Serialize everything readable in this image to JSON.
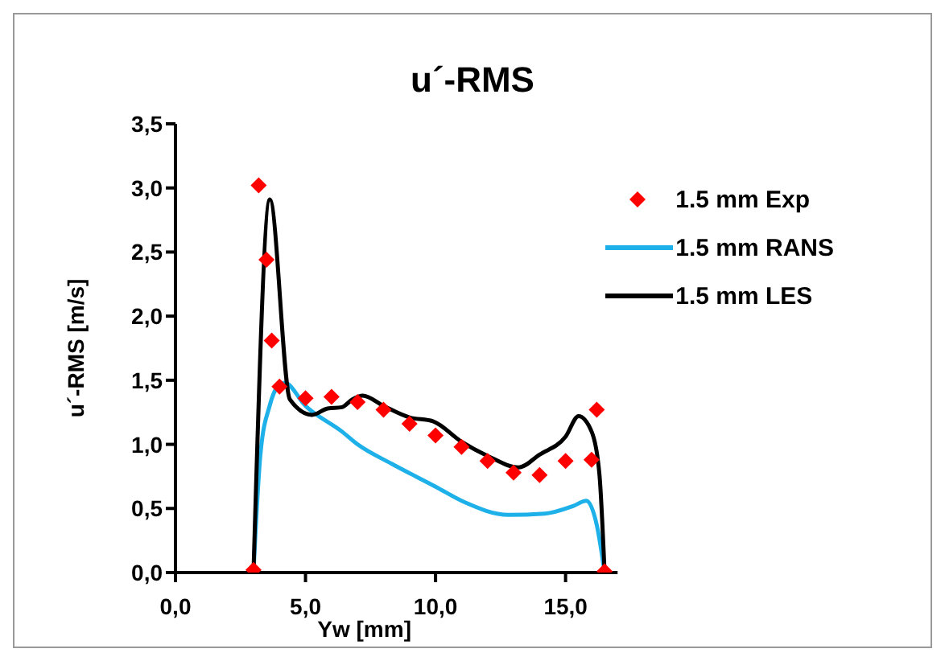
{
  "chart_data": {
    "type": "line",
    "title": "u´-RMS",
    "xlabel": "Yw [mm]",
    "ylabel": "u´-RMS [m/s]",
    "xlim": [
      0,
      17
    ],
    "xticks": [
      {
        "value": 0,
        "label": "0,0"
      },
      {
        "value": 5,
        "label": "5,0"
      },
      {
        "value": 10,
        "label": "10,0"
      },
      {
        "value": 15,
        "label": "15,0"
      }
    ],
    "ylim": [
      0,
      3.5
    ],
    "yticks": [
      {
        "value": 0,
        "label": "0,0"
      },
      {
        "value": 0.5,
        "label": "0,5"
      },
      {
        "value": 1,
        "label": "1,0"
      },
      {
        "value": 1.5,
        "label": "1,5"
      },
      {
        "value": 2,
        "label": "2,0"
      },
      {
        "value": 2.5,
        "label": "2,5"
      },
      {
        "value": 3,
        "label": "3,0"
      },
      {
        "value": 3.5,
        "label": "3,5"
      }
    ],
    "grid": false,
    "legend": "top right",
    "line_style": "solid",
    "series": [
      {
        "name": "1.5 mm Exp",
        "type": "scatter",
        "marker": "diamond",
        "color": "#ff0000",
        "x": [
          3.0,
          3.2,
          3.5,
          3.7,
          4.0,
          5.0,
          6.0,
          7.0,
          8.0,
          9.0,
          10.0,
          11.0,
          12.0,
          13.0,
          14.0,
          15.0,
          16.0,
          16.2,
          16.5
        ],
        "values": [
          0.02,
          3.02,
          2.44,
          1.81,
          1.45,
          1.36,
          1.37,
          1.33,
          1.27,
          1.16,
          1.07,
          0.98,
          0.87,
          0.78,
          0.76,
          0.87,
          0.88,
          1.27,
          0.01
        ]
      },
      {
        "name": "1.5 mm RANS",
        "marker": "none",
        "color": "#1eb0e8",
        "x": [
          3.0,
          3.27,
          3.62,
          3.97,
          4.2,
          5.0,
          6.4,
          7.0,
          8.3,
          10.0,
          11.1,
          12.8,
          14.2,
          15.3,
          15.8,
          16.2,
          16.5
        ],
        "values": [
          0,
          0.93,
          1.3,
          1.46,
          1.48,
          1.3,
          1.1,
          1.0,
          0.85,
          0.67,
          0.55,
          0.45,
          0.46,
          0.52,
          0.56,
          0.37,
          0
        ]
      },
      {
        "name": "1.5 mm LES",
        "marker": "none",
        "color": "#000000",
        "x": [
          3.0,
          3.63,
          4.4,
          5.25,
          5.85,
          6.4,
          6.8,
          7.2,
          8.0,
          9.0,
          9.9,
          11.0,
          12.0,
          13.2,
          14.0,
          15.0,
          15.5,
          16.0,
          16.3,
          16.5
        ],
        "values": [
          0,
          2.91,
          1.35,
          1.23,
          1.28,
          1.29,
          1.35,
          1.38,
          1.3,
          1.21,
          1.18,
          1.02,
          0.91,
          0.82,
          0.92,
          1.06,
          1.22,
          1.1,
          0.77,
          0
        ]
      }
    ]
  }
}
